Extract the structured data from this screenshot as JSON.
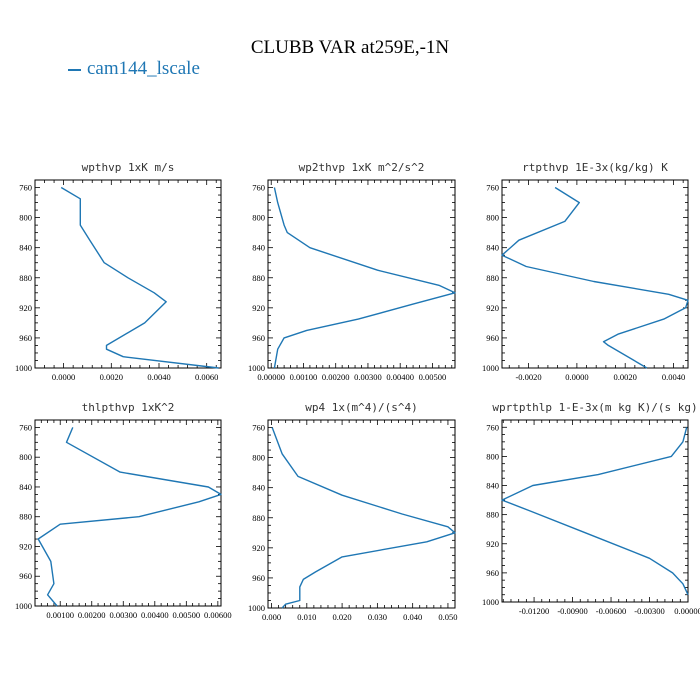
{
  "title": "CLUBB VAR at259E,-1N",
  "colors": {
    "series": "#1f77b4"
  },
  "chart_data": [
    {
      "type": "line",
      "title": "wpthvp  1xK m/s",
      "series": [
        {
          "name": "cam144_lscale",
          "x": [
            -0.0001,
            0.0007,
            0.0007,
            0.0011,
            0.0017,
            0.0027,
            0.0038,
            0.0043,
            0.0034,
            0.0018,
            0.0018,
            0.0025,
            0.0065
          ],
          "y": [
            760,
            775,
            810,
            830,
            860,
            880,
            900,
            912,
            940,
            970,
            975,
            985,
            1000
          ]
        }
      ],
      "xlim": [
        -0.0012,
        0.0066
      ],
      "ylim": [
        750,
        1000
      ],
      "xticks": [
        0.0,
        0.002,
        0.004,
        0.006
      ],
      "xticklabels": [
        "0.0000",
        "0.0020",
        "0.0040",
        "0.0060"
      ],
      "yticks": [
        760,
        800,
        840,
        880,
        920,
        960,
        1000
      ],
      "yticklabels": [
        "760",
        "800",
        "840",
        "880",
        "920",
        "960",
        "1000"
      ]
    },
    {
      "type": "line",
      "title": "wp2thvp  1xK m^2/s^2",
      "series": [
        {
          "name": "cam144_lscale",
          "x": [
            0.0001,
            0.0002,
            0.0004,
            0.0005,
            0.0012,
            0.0033,
            0.0052,
            0.0057,
            0.0044,
            0.0027,
            0.0011,
            0.0004,
            0.0002,
            0.0001
          ],
          "y": [
            760,
            780,
            810,
            820,
            840,
            870,
            890,
            900,
            915,
            935,
            950,
            960,
            975,
            1000
          ]
        }
      ],
      "xlim": [
        -0.0001,
        0.0057
      ],
      "ylim": [
        750,
        1000
      ],
      "xticks": [
        0.0,
        0.001,
        0.002,
        0.003,
        0.004,
        0.005
      ],
      "xticklabels": [
        "0.00000",
        "0.00100",
        "0.00200",
        "0.00300",
        "0.00400",
        "0.00500"
      ],
      "yticks": [
        760,
        800,
        840,
        880,
        920,
        960,
        1000
      ],
      "yticklabels": [
        "760",
        "800",
        "840",
        "880",
        "920",
        "960",
        "1000"
      ]
    },
    {
      "type": "line",
      "title": "rtpthvp  1E-3x(kg/kg) K",
      "series": [
        {
          "name": "cam144_lscale",
          "x": [
            -0.0009,
            0.0001,
            -0.0005,
            -0.0024,
            -0.0031,
            -0.0021,
            0.0007,
            0.0038,
            0.0046,
            0.0045,
            0.0036,
            0.0017,
            0.0011,
            0.0013,
            0.0029
          ],
          "y": [
            760,
            780,
            805,
            830,
            850,
            865,
            885,
            902,
            910,
            920,
            935,
            955,
            965,
            970,
            1000
          ]
        }
      ],
      "xlim": [
        -0.0031,
        0.0046
      ],
      "ylim": [
        750,
        1000
      ],
      "xticks": [
        -0.002,
        0.0,
        0.002,
        0.004
      ],
      "xticklabels": [
        "-0.0020",
        "0.0000",
        "0.0020",
        "0.0040"
      ],
      "yticks": [
        760,
        800,
        840,
        880,
        920,
        960,
        1000
      ],
      "yticklabels": [
        "760",
        "800",
        "840",
        "880",
        "920",
        "960",
        "1000"
      ]
    },
    {
      "type": "line",
      "title": "thlpthvp  1xK^2",
      "series": [
        {
          "name": "cam144_lscale",
          "x": [
            0.0014,
            0.0012,
            0.0029,
            0.0057,
            0.0061,
            0.0054,
            0.0035,
            0.001,
            0.0003,
            0.0007,
            0.0008,
            0.0006,
            0.0009
          ],
          "y": [
            760,
            780,
            820,
            840,
            850,
            860,
            880,
            890,
            910,
            940,
            970,
            985,
            1000
          ]
        }
      ],
      "xlim": [
        0.0002,
        0.0061
      ],
      "ylim": [
        750,
        1000
      ],
      "xticks": [
        0.001,
        0.002,
        0.003,
        0.004,
        0.005,
        0.006
      ],
      "xticklabels": [
        "0.00100",
        "0.00200",
        "0.00300",
        "0.00400",
        "0.00500",
        "0.00600"
      ],
      "yticks": [
        760,
        800,
        840,
        880,
        920,
        960,
        1000
      ],
      "yticklabels": [
        "760",
        "800",
        "840",
        "880",
        "920",
        "960",
        "1000"
      ]
    },
    {
      "type": "line",
      "title": "wp4  1x(m^4)/(s^4)",
      "series": [
        {
          "name": "cam144_lscale",
          "x": [
            0.0002,
            0.003,
            0.0075,
            0.02,
            0.037,
            0.05,
            0.052,
            0.044,
            0.02,
            0.0125,
            0.009,
            0.008,
            0.008,
            0.004,
            0.003
          ],
          "y": [
            760,
            795,
            825,
            850,
            875,
            892,
            900,
            912,
            932,
            952,
            962,
            972,
            990,
            995,
            1000
          ]
        }
      ],
      "xlim": [
        -0.001,
        0.052
      ],
      "ylim": [
        750,
        1000
      ],
      "xticks": [
        0.0,
        0.01,
        0.02,
        0.03,
        0.04,
        0.05
      ],
      "xticklabels": [
        "0.000",
        "0.010",
        "0.020",
        "0.030",
        "0.040",
        "0.050"
      ],
      "yticks": [
        760,
        800,
        840,
        880,
        920,
        960,
        1000
      ],
      "yticklabels": [
        "760",
        "800",
        "840",
        "880",
        "920",
        "960",
        "1000"
      ]
    },
    {
      "type": "line",
      "title": "wprtpthlp  1-E-3x(m kg K)/(s kg)",
      "series": [
        {
          "name": "cam144_lscale",
          "x": [
            -0.0001,
            -0.0004,
            -0.0013,
            -0.007,
            -0.0121,
            -0.0145,
            -0.0123,
            -0.008,
            -0.003,
            -0.0012,
            -0.0004,
            0.0
          ],
          "y": [
            760,
            780,
            800,
            825,
            840,
            860,
            875,
            905,
            940,
            960,
            975,
            990
          ]
        }
      ],
      "xlim": [
        -0.0145,
        0.0
      ],
      "ylim": [
        750,
        1000
      ],
      "xticks": [
        -0.012,
        -0.009,
        -0.006,
        -0.003,
        0.0
      ],
      "xticklabels": [
        "-0.01200",
        "-0.00900",
        "-0.00600",
        "-0.00300",
        "0.00000"
      ],
      "yticks": [
        760,
        800,
        840,
        880,
        920,
        960,
        1000
      ],
      "yticklabels": [
        "760",
        "800",
        "840",
        "880",
        "920",
        "960",
        "1000"
      ]
    }
  ]
}
